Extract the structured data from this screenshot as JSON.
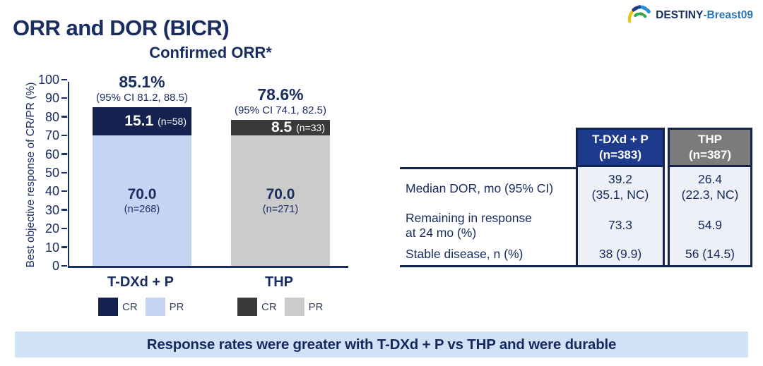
{
  "slide": {
    "title": "ORR and DOR (BICR)",
    "logo": {
      "brand": "DESTINY",
      "suffix": "-Breast09",
      "icon": "destiny-fan-icon"
    },
    "banner_text": "Response rates were greater with T-DXd + P vs THP and were durable",
    "colors": {
      "navy_text": "#1a2d61",
      "cr_navy": "#15214f",
      "pr_light_blue": "#c6d4f4",
      "cr_charcoal": "#3a3a3a",
      "pr_light_gray": "#cbcbcb",
      "table_header_blue": "#1e3a8c",
      "table_header_gray": "#7b7b7b",
      "table_cell_bg": "#edf0f6",
      "table_border_navy": "#14244f",
      "banner_bg": "#d2e2f6",
      "logo_suffix_blue": "#2e74b4"
    }
  },
  "chart_data": {
    "type": "bar",
    "subtype": "stacked",
    "title": "Confirmed ORR*",
    "ylabel": "Best objective response of CR/PR (%)",
    "xlabel": "",
    "ylim": [
      0,
      100
    ],
    "ytick_step": 10,
    "grid": false,
    "legend_position": "below-each-bar",
    "categories": [
      "T-DXd + P",
      "THP"
    ],
    "series": [
      {
        "name": "PR",
        "values": [
          70.0,
          70.0
        ]
      },
      {
        "name": "CR",
        "values": [
          15.1,
          8.5
        ]
      }
    ],
    "bars": [
      {
        "category": "T-DXd + P",
        "total_label": "85.1%",
        "ci_label": "(95% CI 81.2, 88.5)",
        "cr_value": 15.1,
        "cr_value_label": "15.1",
        "cr_n_label": "(n=58)",
        "cr_color": "#15214f",
        "pr_value": 70.0,
        "pr_value_label": "70.0",
        "pr_n_label": "(n=268)",
        "pr_color": "#c6d4f4",
        "legend": [
          {
            "label": "CR",
            "color": "#15214f"
          },
          {
            "label": "PR",
            "color": "#c6d4f4"
          }
        ]
      },
      {
        "category": "THP",
        "total_label": "78.6%",
        "ci_label": "(95% CI 74.1, 82.5)",
        "cr_value": 8.5,
        "cr_value_label": "8.5",
        "cr_n_label": "(n=33)",
        "cr_color": "#3a3a3a",
        "pr_value": 70.0,
        "pr_value_label": "70.0",
        "pr_n_label": "(n=271)",
        "pr_color": "#cbcbcb",
        "legend": [
          {
            "label": "CR",
            "color": "#3a3a3a"
          },
          {
            "label": "PR",
            "color": "#cbcbcb"
          }
        ]
      }
    ]
  },
  "table": {
    "columns": [
      {
        "header_lines": [
          "T-DXd + P",
          "(n=383)"
        ],
        "header_bg": "#1e3a8c"
      },
      {
        "header_lines": [
          "THP",
          "(n=387)"
        ],
        "header_bg": "#7b7b7b"
      }
    ],
    "rows": [
      {
        "label_lines": [
          "Median DOR, mo (95% CI)"
        ],
        "values": [
          [
            "39.2",
            "(35.1, NC)"
          ],
          [
            "26.4",
            "(22.3, NC)"
          ]
        ]
      },
      {
        "label_lines": [
          "Remaining in response",
          "at 24 mo (%)"
        ],
        "values": [
          [
            "73.3"
          ],
          [
            "54.9"
          ]
        ]
      },
      {
        "label_lines": [
          "Stable disease, n (%)"
        ],
        "values": [
          [
            "38 (9.9)"
          ],
          [
            "56 (14.5)"
          ]
        ]
      }
    ]
  }
}
